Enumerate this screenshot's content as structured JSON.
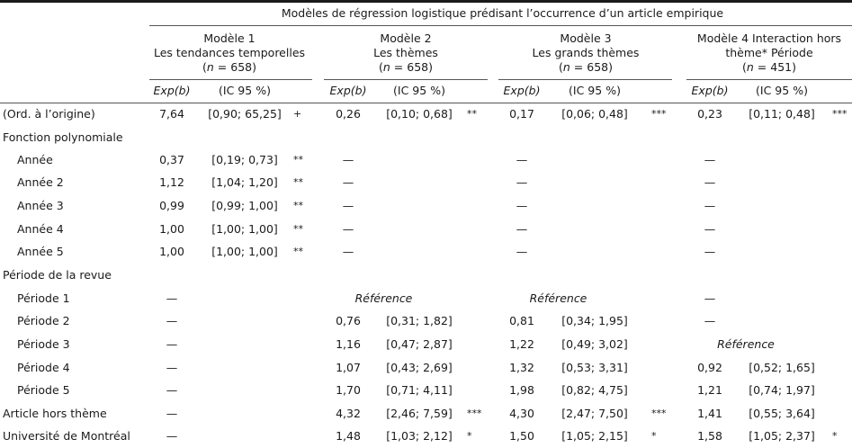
{
  "table": {
    "super_header": "Modèles de régression logistique prédisant l’occurrence d’un article empirique",
    "models": [
      {
        "line1": "Modèle 1",
        "line2": "Les tendances temporelles",
        "n_label": "n",
        "n_value": "= 658)",
        "n_open": "("
      },
      {
        "line1": "Modèle 2",
        "line2": "Les thèmes",
        "n_label": "n",
        "n_value": "= 658)",
        "n_open": "("
      },
      {
        "line1": "Modèle 3",
        "line2": "Les grands thèmes",
        "n_label": "n",
        "n_value": "= 658)",
        "n_open": "("
      },
      {
        "line1": "Modèle 4 Interaction hors",
        "line2": "thème* Période",
        "n_label": "n",
        "n_value": "= 451)",
        "n_open": "("
      }
    ],
    "sub_headers": {
      "exp": "Exp(b)",
      "ic": "(IC 95 %)"
    },
    "rows": [
      {
        "label": "(Ord. à l’origine)",
        "indent": false,
        "cells": [
          {
            "exp": "7,64",
            "ic": "[0,90; 65,25]",
            "sig": "+"
          },
          {
            "exp": "0,26",
            "ic": "[0,10; 0,68]",
            "sig": "**"
          },
          {
            "exp": "0,17",
            "ic": "[0,06; 0,48]",
            "sig": "***"
          },
          {
            "exp": "0,23",
            "ic": "[0,11; 0,48]",
            "sig": "***"
          }
        ]
      },
      {
        "label": "Fonction polynomiale",
        "indent": false,
        "cells": [
          {},
          {},
          {},
          {}
        ]
      },
      {
        "label": "Année",
        "indent": true,
        "cells": [
          {
            "exp": "0,37",
            "ic": "[0,19; 0,73]",
            "sig": "**"
          },
          {
            "exp": "—"
          },
          {
            "exp": "—"
          },
          {
            "exp": "—"
          }
        ]
      },
      {
        "label": "Année 2",
        "indent": true,
        "cells": [
          {
            "exp": "1,12",
            "ic": "[1,04; 1,20]",
            "sig": "**"
          },
          {
            "exp": "—"
          },
          {
            "exp": "—"
          },
          {
            "exp": "—"
          }
        ]
      },
      {
        "label": "Année 3",
        "indent": true,
        "cells": [
          {
            "exp": "0,99",
            "ic": "[0,99; 1,00]",
            "sig": "**"
          },
          {
            "exp": "—"
          },
          {
            "exp": "—"
          },
          {
            "exp": "—"
          }
        ]
      },
      {
        "label": "Année 4",
        "indent": true,
        "cells": [
          {
            "exp": "1,00",
            "ic": "[1,00; 1,00]",
            "sig": "**"
          },
          {
            "exp": "—"
          },
          {
            "exp": "—"
          },
          {
            "exp": "—"
          }
        ]
      },
      {
        "label": "Année 5",
        "indent": true,
        "cells": [
          {
            "exp": "1,00",
            "ic": "[1,00; 1,00]",
            "sig": "**"
          },
          {
            "exp": "—"
          },
          {
            "exp": "—"
          },
          {
            "exp": "—"
          }
        ]
      },
      {
        "label": "Période de la revue",
        "indent": false,
        "cells": [
          {},
          {},
          {},
          {}
        ]
      },
      {
        "label": "Période 1",
        "indent": true,
        "cells": [
          {
            "exp": "—"
          },
          {
            "ref": "Référence"
          },
          {
            "ref": "Référence"
          },
          {
            "exp": "—"
          }
        ]
      },
      {
        "label": "Période 2",
        "indent": true,
        "cells": [
          {
            "exp": "—"
          },
          {
            "exp": "0,76",
            "ic": "[0,31; 1,82]"
          },
          {
            "exp": "0,81",
            "ic": "[0,34; 1,95]"
          },
          {
            "exp": "—"
          }
        ]
      },
      {
        "label": "Période 3",
        "indent": true,
        "cells": [
          {
            "exp": "—"
          },
          {
            "exp": "1,16",
            "ic": "[0,47; 2,87]"
          },
          {
            "exp": "1,22",
            "ic": "[0,49; 3,02]"
          },
          {
            "ref": "Référence"
          }
        ]
      },
      {
        "label": "Période 4",
        "indent": true,
        "cells": [
          {
            "exp": "—"
          },
          {
            "exp": "1,07",
            "ic": "[0,43; 2,69]"
          },
          {
            "exp": "1,32",
            "ic": "[0,53; 3,31]"
          },
          {
            "exp": "0,92",
            "ic": "[0,52; 1,65]"
          }
        ]
      },
      {
        "label": "Période 5",
        "indent": true,
        "cells": [
          {
            "exp": "—"
          },
          {
            "exp": "1,70",
            "ic": "[0,71; 4,11]"
          },
          {
            "exp": "1,98",
            "ic": "[0,82; 4,75]"
          },
          {
            "exp": "1,21",
            "ic": "[0,74; 1,97]"
          }
        ]
      },
      {
        "label": "Article hors thème",
        "indent": false,
        "cells": [
          {
            "exp": "—"
          },
          {
            "exp": "4,32",
            "ic": "[2,46; 7,59]",
            "sig": "***"
          },
          {
            "exp": "4,30",
            "ic": "[2,47; 7,50]",
            "sig": "***"
          },
          {
            "exp": "1,41",
            "ic": "[0,55; 3,64]"
          }
        ]
      },
      {
        "label": "Université de Montréal",
        "indent": false,
        "cells": [
          {
            "exp": "—"
          },
          {
            "exp": "1,48",
            "ic": "[1,03; 2,12]",
            "sig": "*"
          },
          {
            "exp": "1,50",
            "ic": "[1,05; 2,15]",
            "sig": "*"
          },
          {
            "exp": "1,58",
            "ic": "[1,05; 2,37]",
            "sig": "*"
          }
        ]
      }
    ]
  }
}
